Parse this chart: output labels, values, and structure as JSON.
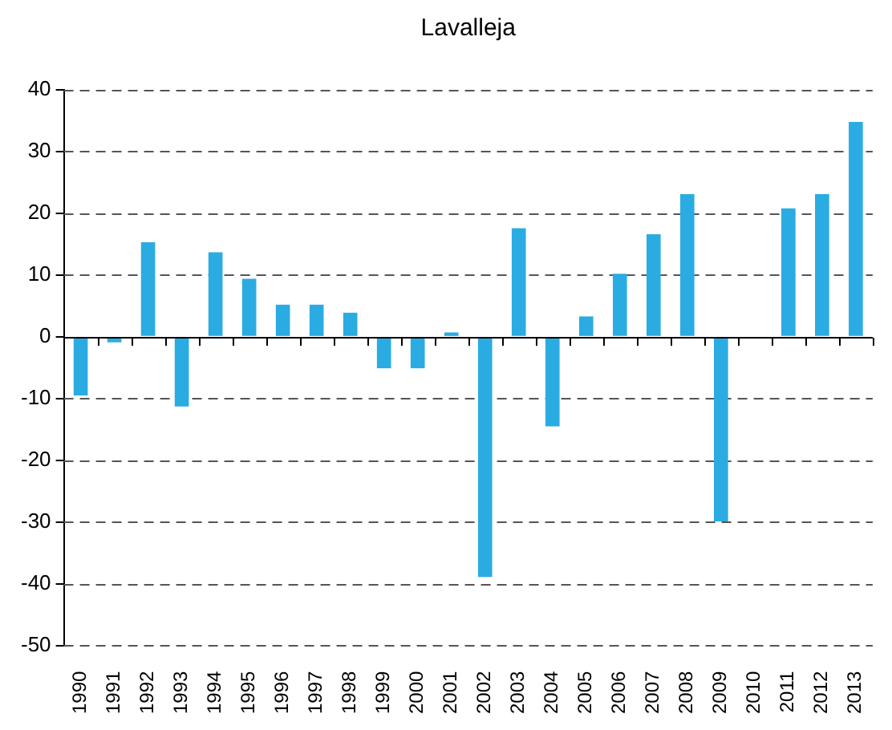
{
  "chart_data": {
    "type": "bar",
    "title": "Lavalleja",
    "categories": [
      "1990",
      "1991",
      "1992",
      "1993",
      "1994",
      "1995",
      "1996",
      "1997",
      "1998",
      "1999",
      "2000",
      "2001",
      "2002",
      "2003",
      "2004",
      "2005",
      "2006",
      "2007",
      "2008",
      "2009",
      "2010",
      "2011",
      "2012",
      "2013"
    ],
    "values": [
      -9.5,
      -0.9,
      15.3,
      -11.3,
      13.7,
      9.4,
      5.2,
      5.2,
      3.9,
      -5.1,
      -5.1,
      0.7,
      -38.9,
      17.6,
      -14.5,
      3.3,
      10.2,
      16.6,
      23.1,
      -29.9,
      null,
      20.8,
      23.1,
      34.8
    ],
    "color": "#2aace2",
    "ylim": [
      -50,
      40
    ],
    "yticks": [
      -50,
      -40,
      -30,
      -20,
      -10,
      0,
      10,
      20,
      30,
      40
    ],
    "grid": "y"
  }
}
